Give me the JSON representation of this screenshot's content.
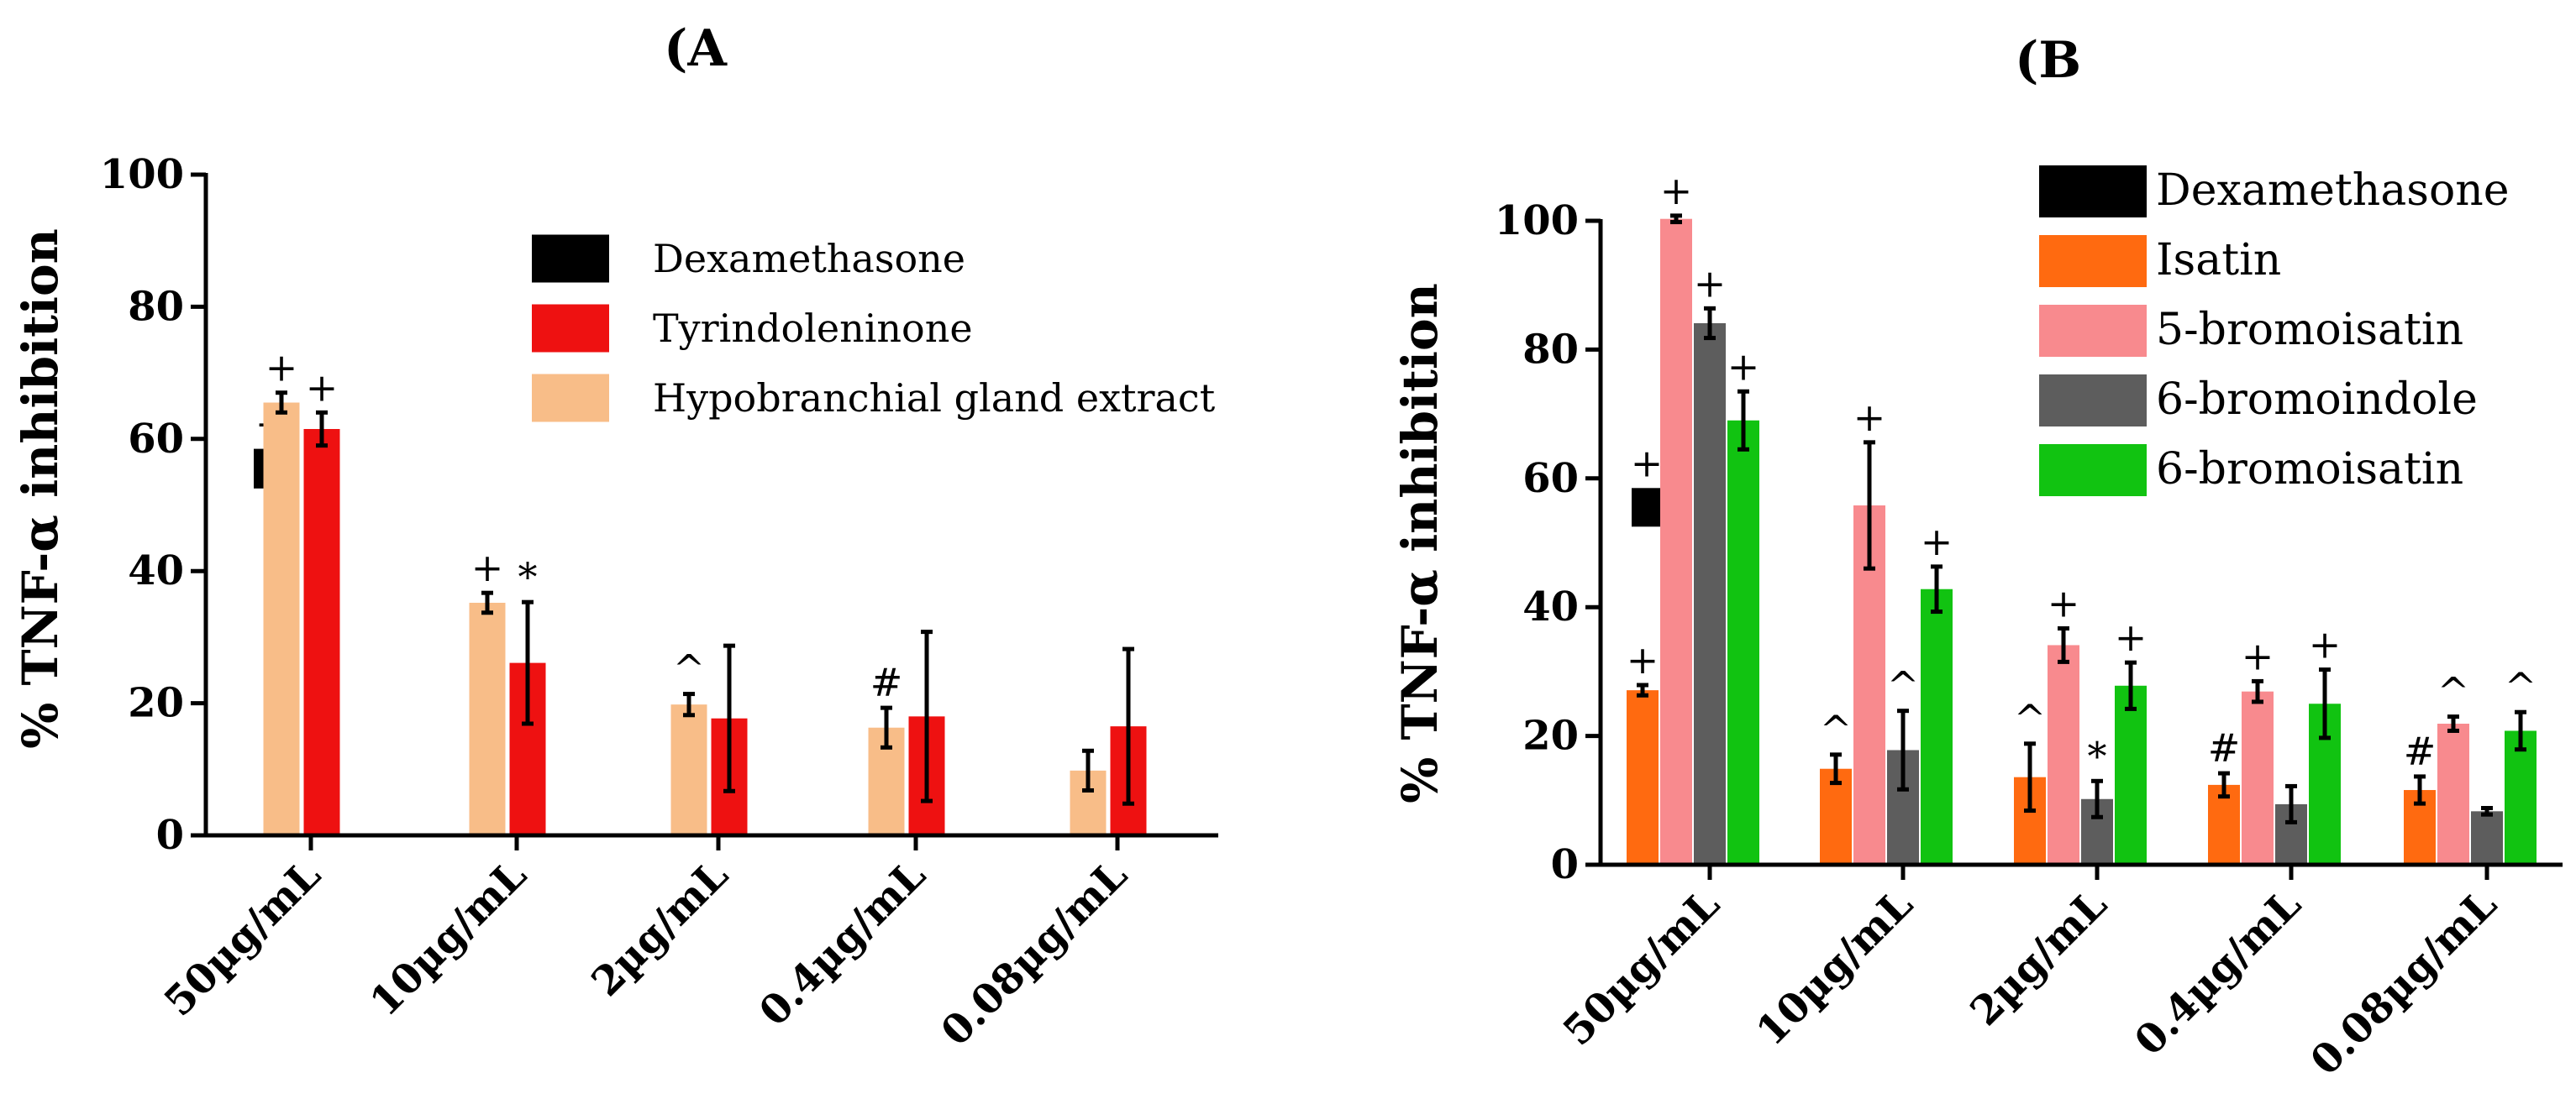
{
  "colors": {
    "dexamethasone": "#000000",
    "tyrindoleninone": "#ee1111",
    "hypobranchial": "#f8bd88",
    "isatin": "#ff6a10",
    "bromoisatin5": "#f88a8e",
    "bromoindole6": "#5d5d5d",
    "bromoisatin6": "#11c311",
    "errorbar": "#000000"
  },
  "chart_data": [
    {
      "panel_label": "(A",
      "type": "bar",
      "title": "",
      "xlabel": "",
      "ylabel": "% TNF-α inhibition",
      "ylim": [
        0,
        100
      ],
      "yticks": [
        "0",
        "20",
        "40",
        "60",
        "80",
        "100"
      ],
      "categories": [
        "50µg/mL",
        "10µg/mL",
        "2µg/mL",
        "0.4µg/mL",
        "0.08µg/mL"
      ],
      "legend_position": "top-right",
      "legend": [
        "Dexamethasone",
        "Tyrindoleninone",
        "Hypobranchial gland extract"
      ],
      "control": {
        "name": "Dexamethasone",
        "value": 55.5,
        "error": 3,
        "annotation": "+",
        "color_key": "dexamethasone"
      },
      "series": [
        {
          "name": "Hypobranchial gland extract",
          "color_key": "hypobranchial",
          "values": [
            65.5,
            35.2,
            19.8,
            16.3,
            9.8
          ],
          "errors": [
            1.5,
            1.5,
            1.6,
            3,
            3
          ],
          "annotations": [
            "+",
            "+",
            "^",
            "#",
            ""
          ]
        },
        {
          "name": "Tyrindoleninone",
          "color_key": "tyrindoleninone",
          "values": [
            61.5,
            26.1,
            17.7,
            18,
            16.5
          ],
          "errors": [
            2.5,
            9.2,
            11,
            12.8,
            11.7
          ],
          "annotations": [
            "+",
            "*",
            "",
            "",
            ""
          ]
        }
      ]
    },
    {
      "panel_label": "(B",
      "type": "bar",
      "title": "",
      "xlabel": "",
      "ylabel": "% TNF-α inhibition",
      "ylim": [
        0,
        100
      ],
      "yticks": [
        "0",
        "20",
        "40",
        "60",
        "80",
        "100"
      ],
      "categories": [
        "50µg/mL",
        "10µg/mL",
        "2µg/mL",
        "0.4µg/mL",
        "0.08µg/mL"
      ],
      "legend_position": "top-right",
      "legend": [
        "Dexamethasone",
        "Isatin",
        "5-bromoisatin",
        "6-bromoindole",
        "6-bromoisatin"
      ],
      "control": {
        "name": "Dexamethasone",
        "value": 55.5,
        "error": 3,
        "annotation": "+",
        "color_key": "dexamethasone"
      },
      "series": [
        {
          "name": "Isatin",
          "color_key": "isatin",
          "values": [
            27.1,
            14.9,
            13.6,
            12.4,
            11.6
          ],
          "errors": [
            0.8,
            2.2,
            5.2,
            1.8,
            2.1
          ],
          "annotations": [
            "+",
            "^",
            "^",
            "#",
            "#"
          ]
        },
        {
          "name": "5-bromoisatin",
          "color_key": "bromoisatin5",
          "values": [
            100.3,
            55.8,
            34.1,
            26.9,
            21.9
          ],
          "errors": [
            0.5,
            9.8,
            2.6,
            1.6,
            1.1
          ],
          "annotations": [
            "+",
            "+",
            "+",
            "+",
            "^"
          ]
        },
        {
          "name": "6-bromoindole",
          "color_key": "bromoindole6",
          "values": [
            84.1,
            17.8,
            10.2,
            9.4,
            8.3
          ],
          "errors": [
            2.3,
            6.1,
            2.8,
            2.8,
            0.5
          ],
          "annotations": [
            "+",
            "^",
            "*",
            "",
            ""
          ]
        },
        {
          "name": "6-bromoisatin",
          "color_key": "bromoisatin6",
          "values": [
            69,
            42.8,
            27.8,
            25,
            20.8
          ],
          "errors": [
            4.5,
            3.5,
            3.6,
            5.3,
            2.9
          ],
          "annotations": [
            "+",
            "+",
            "+",
            "+",
            "^"
          ]
        }
      ]
    }
  ]
}
